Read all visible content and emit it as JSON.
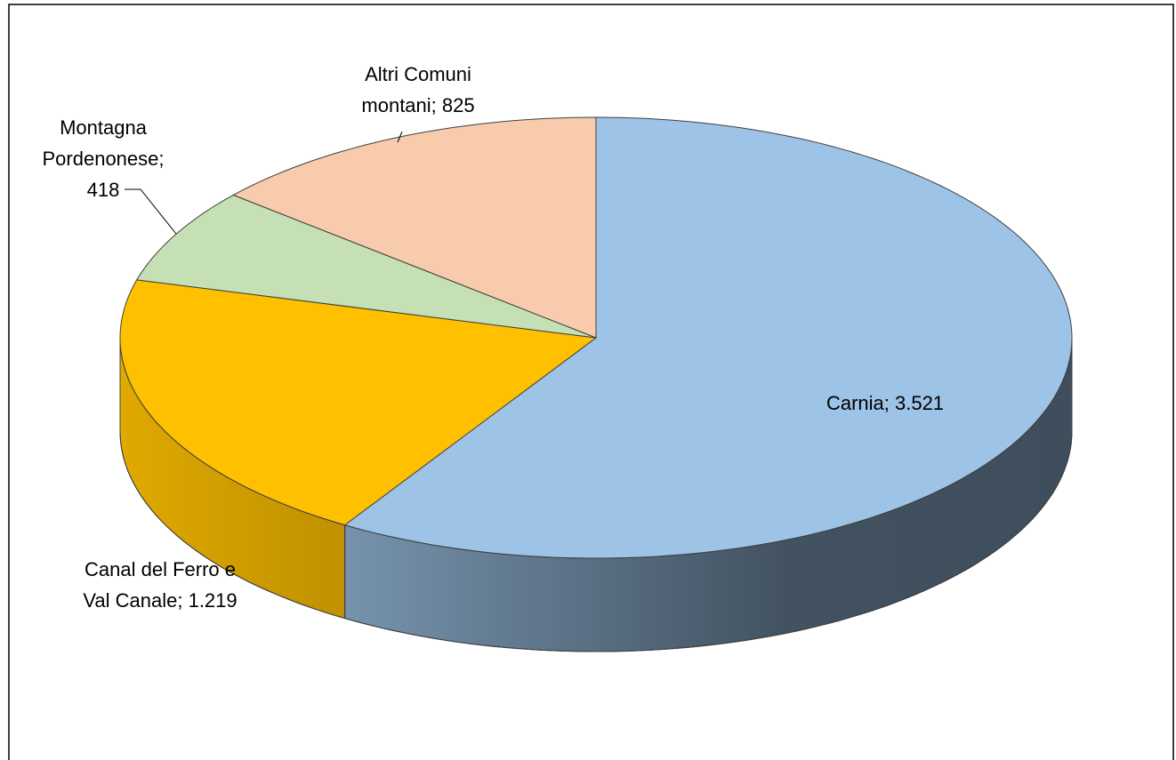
{
  "chart_data": {
    "type": "pie3d",
    "values": [
      3521,
      1219,
      418,
      825
    ],
    "value_labels": [
      [
        "Carnia; 3.521"
      ],
      [
        "Canal del Ferro e",
        "Val Canale; 1.219"
      ],
      [
        "Montagna",
        "Pordenonese;",
        "418"
      ],
      [
        "Altri Comuni",
        "montani; 825"
      ]
    ],
    "colors": [
      "#9dc3e6",
      "#ffc000",
      "#c5e0b4",
      "#f8cbad"
    ]
  }
}
